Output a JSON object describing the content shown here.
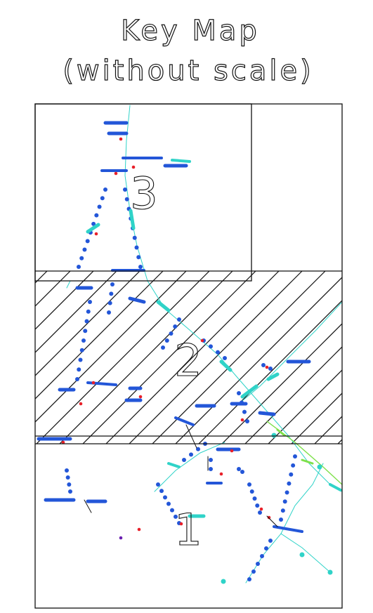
{
  "title": {
    "line1": "Key Map",
    "line2": "(without scale)"
  },
  "map": {
    "sheets": [
      {
        "number": "1",
        "hatched": false
      },
      {
        "number": "2",
        "hatched": true
      },
      {
        "number": "3",
        "hatched": false
      }
    ]
  },
  "colors": {
    "line": "#111111",
    "pipe_primary": "#2356d8",
    "pipe_secondary": "#2fd3c8",
    "pipe_accent": "#7ee04a",
    "marker_red": "#e8202a",
    "marker_purple": "#6a1fb0"
  }
}
